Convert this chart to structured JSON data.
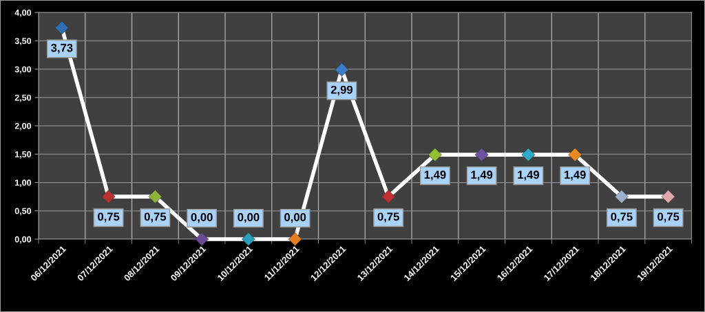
{
  "chart_data": {
    "type": "line",
    "categories": [
      "06/12/2021",
      "07/12/2021",
      "08/12/2021",
      "09/12/2021",
      "10/12/2021",
      "11/12/2021",
      "12/12/2021",
      "13/12/2021",
      "14/12/2021",
      "15/12/2021",
      "16/12/2021",
      "17/12/2021",
      "18/12/2021",
      "19/12/2021"
    ],
    "series": [
      {
        "color": "#ffffff",
        "colors": [
          "#2f6eb5",
          "#b83232",
          "#8cb43a",
          "#6a4a98",
          "#2a9fbc",
          "#e4801f",
          "#3a7cc8",
          "#c03030",
          "#92c030",
          "#7050a0",
          "#30a8c8",
          "#e88a20",
          "#9db0d0",
          "#e0a8a8"
        ],
        "values": [
          3.73,
          0.75,
          0.75,
          0,
          0,
          0,
          2.99,
          0.75,
          1.49,
          1.49,
          1.49,
          1.49,
          0.75,
          0.75
        ],
        "value_labels": [
          "3,73",
          "0,75",
          "0,75",
          "0,00",
          "0,00",
          "0,00",
          "2,99",
          "0,75",
          "1,49",
          "1,49",
          "1,49",
          "1,49",
          "0,75",
          "0,75"
        ]
      }
    ],
    "ylim": [
      0,
      4
    ],
    "yticks": [
      {
        "value": 0,
        "label": "0,00"
      },
      {
        "value": 0.5,
        "label": "0,50"
      },
      {
        "value": 1,
        "label": "1,00"
      },
      {
        "value": 1.5,
        "label": "1,50"
      },
      {
        "value": 2,
        "label": "2,00"
      },
      {
        "value": 2.5,
        "label": "2,50"
      },
      {
        "value": 3,
        "label": "3,00"
      },
      {
        "value": 3.5,
        "label": "3,50"
      },
      {
        "value": 4,
        "label": "4,00"
      }
    ],
    "grid": true,
    "marker": "diamond",
    "line_style": "solid"
  }
}
